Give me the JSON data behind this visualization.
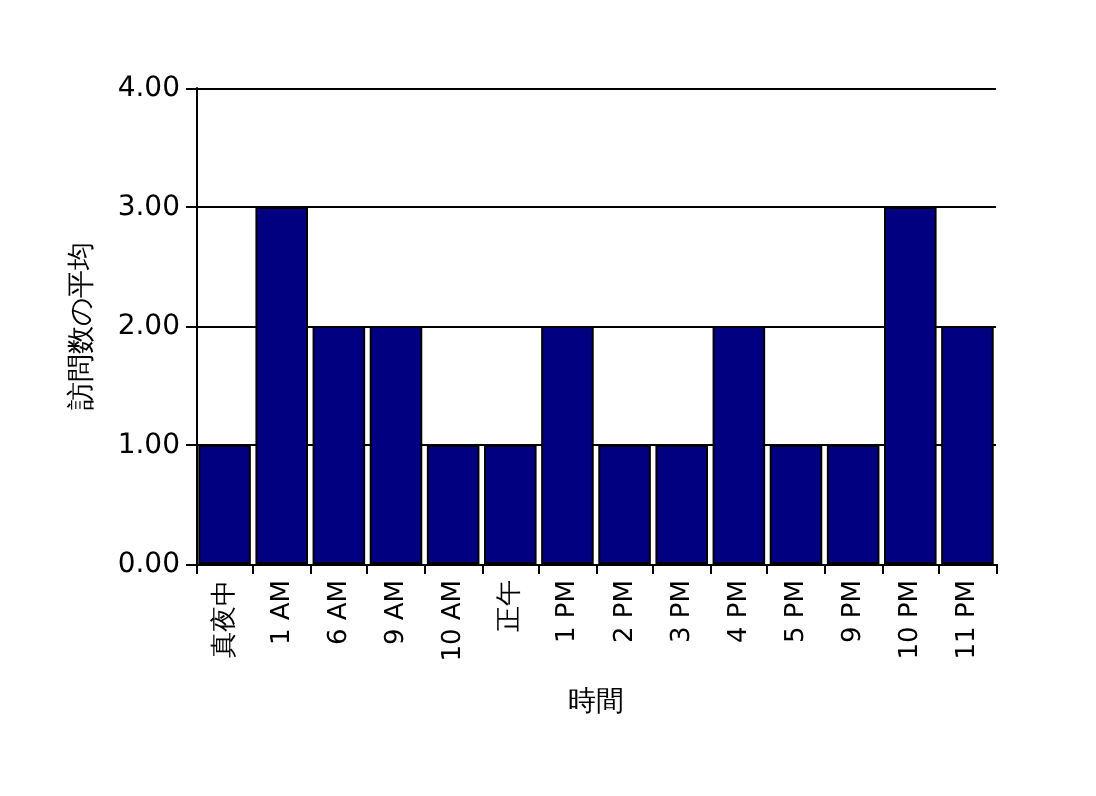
{
  "chart_data": {
    "type": "bar",
    "xlabel": "時間",
    "ylabel": "訪問数の平均",
    "categories": [
      "真夜中",
      "1 AM",
      "6 AM",
      "9 AM",
      "10 AM",
      "正午",
      "1 PM",
      "2 PM",
      "3 PM",
      "4 PM",
      "5 PM",
      "9 PM",
      "10 PM",
      "11 PM"
    ],
    "values": [
      1,
      3,
      2,
      2,
      1,
      1,
      2,
      1,
      1,
      2,
      1,
      1,
      3,
      2
    ],
    "color": "#000080",
    "ylim": [
      0,
      4
    ],
    "yticks": [
      {
        "value": 0,
        "label": "0.00"
      },
      {
        "value": 1,
        "label": "1.00"
      },
      {
        "value": 2,
        "label": "2.00"
      },
      {
        "value": 3,
        "label": "3.00"
      },
      {
        "value": 4,
        "label": "4.00"
      }
    ],
    "grid": "y"
  }
}
